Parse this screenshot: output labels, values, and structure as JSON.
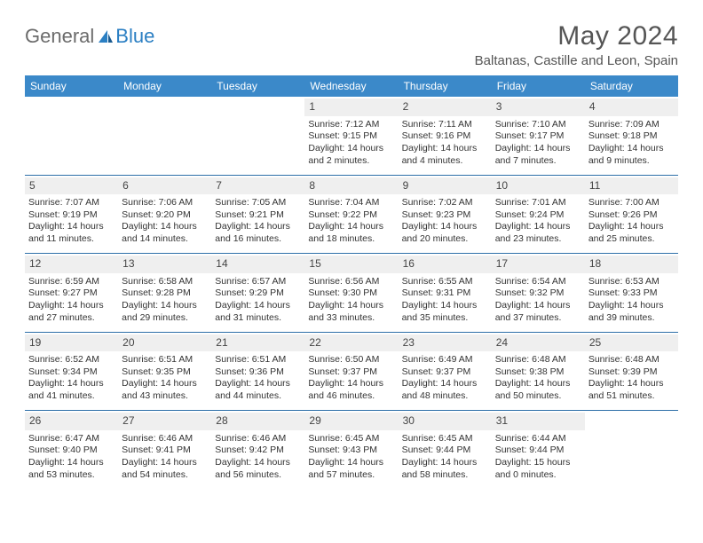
{
  "brand": {
    "part1": "General",
    "part2": "Blue"
  },
  "title": "May 2024",
  "location": "Baltanas, Castille and Leon, Spain",
  "colors": {
    "header_bg": "#3b89c9",
    "header_text": "#ffffff",
    "daynum_bg": "#efefef",
    "row_border": "#2d6fa8",
    "brand_gray": "#6b6b6b",
    "brand_blue": "#2b7fc3",
    "body_text": "#333333"
  },
  "day_headers": [
    "Sunday",
    "Monday",
    "Tuesday",
    "Wednesday",
    "Thursday",
    "Friday",
    "Saturday"
  ],
  "weeks": [
    [
      null,
      null,
      null,
      {
        "n": "1",
        "sr": "Sunrise: 7:12 AM",
        "ss": "Sunset: 9:15 PM",
        "dl": "Daylight: 14 hours and 2 minutes."
      },
      {
        "n": "2",
        "sr": "Sunrise: 7:11 AM",
        "ss": "Sunset: 9:16 PM",
        "dl": "Daylight: 14 hours and 4 minutes."
      },
      {
        "n": "3",
        "sr": "Sunrise: 7:10 AM",
        "ss": "Sunset: 9:17 PM",
        "dl": "Daylight: 14 hours and 7 minutes."
      },
      {
        "n": "4",
        "sr": "Sunrise: 7:09 AM",
        "ss": "Sunset: 9:18 PM",
        "dl": "Daylight: 14 hours and 9 minutes."
      }
    ],
    [
      {
        "n": "5",
        "sr": "Sunrise: 7:07 AM",
        "ss": "Sunset: 9:19 PM",
        "dl": "Daylight: 14 hours and 11 minutes."
      },
      {
        "n": "6",
        "sr": "Sunrise: 7:06 AM",
        "ss": "Sunset: 9:20 PM",
        "dl": "Daylight: 14 hours and 14 minutes."
      },
      {
        "n": "7",
        "sr": "Sunrise: 7:05 AM",
        "ss": "Sunset: 9:21 PM",
        "dl": "Daylight: 14 hours and 16 minutes."
      },
      {
        "n": "8",
        "sr": "Sunrise: 7:04 AM",
        "ss": "Sunset: 9:22 PM",
        "dl": "Daylight: 14 hours and 18 minutes."
      },
      {
        "n": "9",
        "sr": "Sunrise: 7:02 AM",
        "ss": "Sunset: 9:23 PM",
        "dl": "Daylight: 14 hours and 20 minutes."
      },
      {
        "n": "10",
        "sr": "Sunrise: 7:01 AM",
        "ss": "Sunset: 9:24 PM",
        "dl": "Daylight: 14 hours and 23 minutes."
      },
      {
        "n": "11",
        "sr": "Sunrise: 7:00 AM",
        "ss": "Sunset: 9:26 PM",
        "dl": "Daylight: 14 hours and 25 minutes."
      }
    ],
    [
      {
        "n": "12",
        "sr": "Sunrise: 6:59 AM",
        "ss": "Sunset: 9:27 PM",
        "dl": "Daylight: 14 hours and 27 minutes."
      },
      {
        "n": "13",
        "sr": "Sunrise: 6:58 AM",
        "ss": "Sunset: 9:28 PM",
        "dl": "Daylight: 14 hours and 29 minutes."
      },
      {
        "n": "14",
        "sr": "Sunrise: 6:57 AM",
        "ss": "Sunset: 9:29 PM",
        "dl": "Daylight: 14 hours and 31 minutes."
      },
      {
        "n": "15",
        "sr": "Sunrise: 6:56 AM",
        "ss": "Sunset: 9:30 PM",
        "dl": "Daylight: 14 hours and 33 minutes."
      },
      {
        "n": "16",
        "sr": "Sunrise: 6:55 AM",
        "ss": "Sunset: 9:31 PM",
        "dl": "Daylight: 14 hours and 35 minutes."
      },
      {
        "n": "17",
        "sr": "Sunrise: 6:54 AM",
        "ss": "Sunset: 9:32 PM",
        "dl": "Daylight: 14 hours and 37 minutes."
      },
      {
        "n": "18",
        "sr": "Sunrise: 6:53 AM",
        "ss": "Sunset: 9:33 PM",
        "dl": "Daylight: 14 hours and 39 minutes."
      }
    ],
    [
      {
        "n": "19",
        "sr": "Sunrise: 6:52 AM",
        "ss": "Sunset: 9:34 PM",
        "dl": "Daylight: 14 hours and 41 minutes."
      },
      {
        "n": "20",
        "sr": "Sunrise: 6:51 AM",
        "ss": "Sunset: 9:35 PM",
        "dl": "Daylight: 14 hours and 43 minutes."
      },
      {
        "n": "21",
        "sr": "Sunrise: 6:51 AM",
        "ss": "Sunset: 9:36 PM",
        "dl": "Daylight: 14 hours and 44 minutes."
      },
      {
        "n": "22",
        "sr": "Sunrise: 6:50 AM",
        "ss": "Sunset: 9:37 PM",
        "dl": "Daylight: 14 hours and 46 minutes."
      },
      {
        "n": "23",
        "sr": "Sunrise: 6:49 AM",
        "ss": "Sunset: 9:37 PM",
        "dl": "Daylight: 14 hours and 48 minutes."
      },
      {
        "n": "24",
        "sr": "Sunrise: 6:48 AM",
        "ss": "Sunset: 9:38 PM",
        "dl": "Daylight: 14 hours and 50 minutes."
      },
      {
        "n": "25",
        "sr": "Sunrise: 6:48 AM",
        "ss": "Sunset: 9:39 PM",
        "dl": "Daylight: 14 hours and 51 minutes."
      }
    ],
    [
      {
        "n": "26",
        "sr": "Sunrise: 6:47 AM",
        "ss": "Sunset: 9:40 PM",
        "dl": "Daylight: 14 hours and 53 minutes."
      },
      {
        "n": "27",
        "sr": "Sunrise: 6:46 AM",
        "ss": "Sunset: 9:41 PM",
        "dl": "Daylight: 14 hours and 54 minutes."
      },
      {
        "n": "28",
        "sr": "Sunrise: 6:46 AM",
        "ss": "Sunset: 9:42 PM",
        "dl": "Daylight: 14 hours and 56 minutes."
      },
      {
        "n": "29",
        "sr": "Sunrise: 6:45 AM",
        "ss": "Sunset: 9:43 PM",
        "dl": "Daylight: 14 hours and 57 minutes."
      },
      {
        "n": "30",
        "sr": "Sunrise: 6:45 AM",
        "ss": "Sunset: 9:44 PM",
        "dl": "Daylight: 14 hours and 58 minutes."
      },
      {
        "n": "31",
        "sr": "Sunrise: 6:44 AM",
        "ss": "Sunset: 9:44 PM",
        "dl": "Daylight: 15 hours and 0 minutes."
      },
      null
    ]
  ]
}
